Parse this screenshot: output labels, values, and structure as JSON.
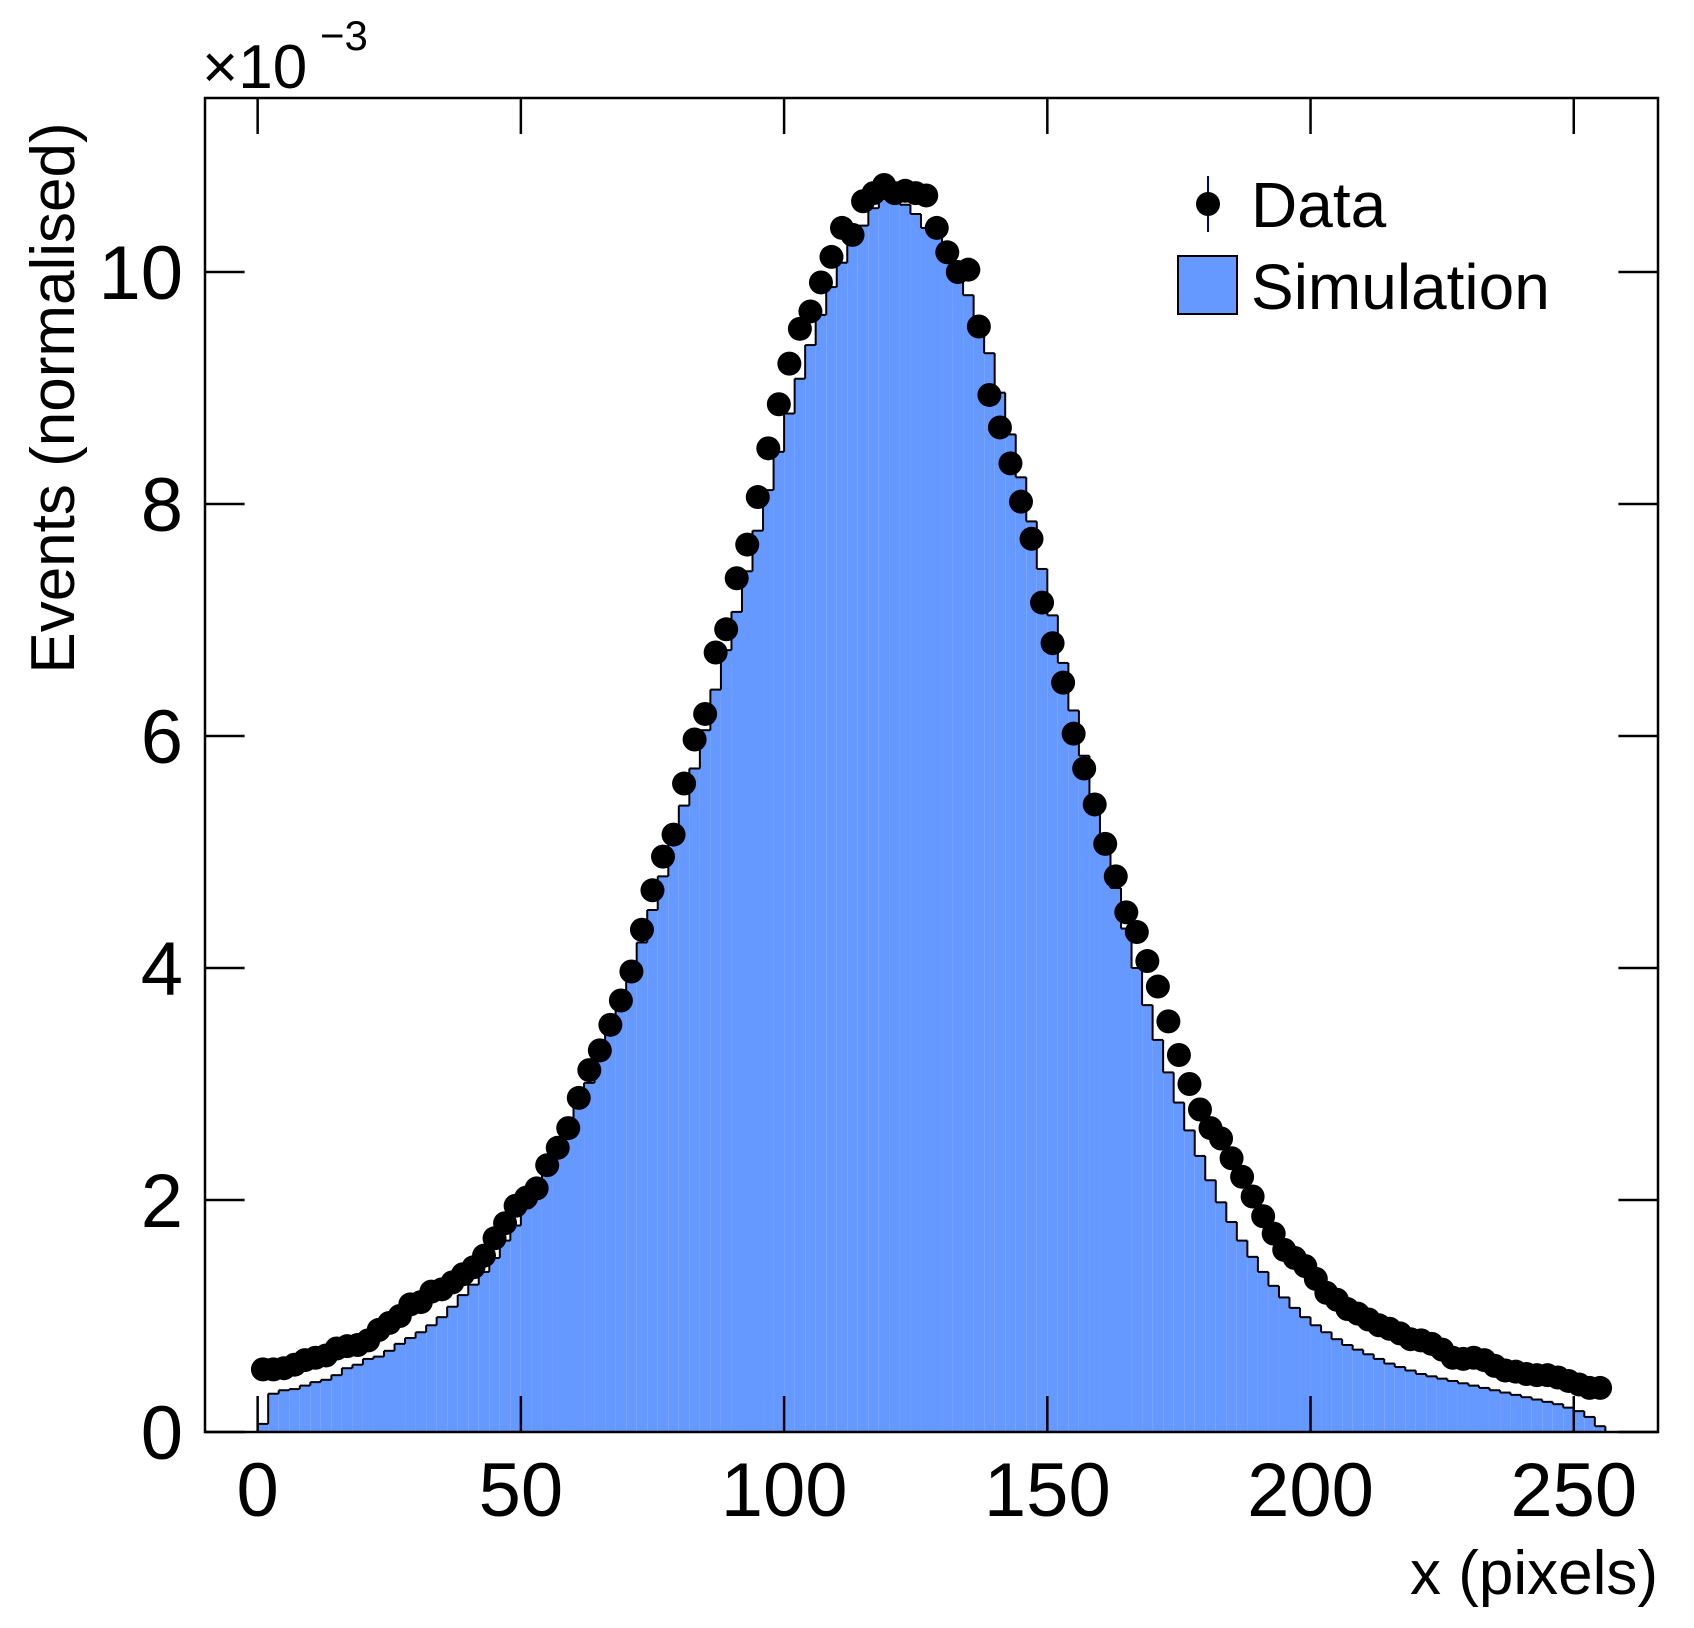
{
  "chart_data": {
    "type": "histogram",
    "x_label": "x (pixels)",
    "y_label": "Events (normalised)",
    "y_scale_label": "×10",
    "y_scale_exponent": "−3",
    "xlim": [
      -10,
      266
    ],
    "ylim": [
      0,
      11.5
    ],
    "xticks": [
      0,
      50,
      100,
      150,
      200,
      250
    ],
    "yticks": [
      0,
      2,
      4,
      6,
      8,
      10
    ],
    "legend": "upper right",
    "bins": [
      0,
      2,
      4,
      6,
      8,
      10,
      12,
      14,
      16,
      18,
      20,
      22,
      24,
      26,
      28,
      30,
      32,
      34,
      36,
      38,
      40,
      42,
      44,
      46,
      48,
      50,
      52,
      54,
      56,
      58,
      60,
      62,
      64,
      66,
      68,
      70,
      72,
      74,
      76,
      78,
      80,
      82,
      84,
      86,
      88,
      90,
      92,
      94,
      96,
      98,
      100,
      102,
      104,
      106,
      108,
      110,
      112,
      114,
      116,
      118,
      120,
      122,
      124,
      126,
      128,
      130,
      132,
      134,
      136,
      138,
      140,
      142,
      144,
      146,
      148,
      150,
      152,
      154,
      156,
      158,
      160,
      162,
      164,
      166,
      168,
      170,
      172,
      174,
      176,
      178,
      180,
      182,
      184,
      186,
      188,
      190,
      192,
      194,
      196,
      198,
      200,
      202,
      204,
      206,
      208,
      210,
      212,
      214,
      216,
      218,
      220,
      222,
      224,
      226,
      228,
      230,
      232,
      234,
      236,
      238,
      240,
      242,
      244,
      246,
      248,
      250,
      252,
      254,
      256
    ],
    "series": [
      {
        "name": "Data",
        "type": "scatter",
        "color": "#000000",
        "x": [
          1,
          3,
          5,
          7,
          9,
          11,
          13,
          15,
          17,
          19,
          21,
          23,
          25,
          27,
          29,
          31,
          33,
          35,
          37,
          39,
          41,
          43,
          45,
          47,
          49,
          51,
          53,
          55,
          57,
          59,
          61,
          63,
          65,
          67,
          69,
          71,
          73,
          75,
          77,
          79,
          81,
          83,
          85,
          87,
          89,
          91,
          93,
          95,
          97,
          99,
          101,
          103,
          105,
          107,
          109,
          111,
          113,
          115,
          117,
          119,
          121,
          123,
          125,
          127,
          129,
          131,
          133,
          135,
          137,
          139,
          141,
          143,
          145,
          147,
          149,
          151,
          153,
          155,
          157,
          159,
          161,
          163,
          165,
          167,
          169,
          171,
          173,
          175,
          177,
          179,
          181,
          183,
          185,
          187,
          189,
          191,
          193,
          195,
          197,
          199,
          201,
          203,
          205,
          207,
          209,
          211,
          213,
          215,
          217,
          219,
          221,
          223,
          225,
          227,
          229,
          231,
          233,
          235,
          237,
          239,
          241,
          243,
          245,
          247,
          249,
          251,
          253,
          255
        ],
        "values": [
          0.54,
          0.54,
          0.55,
          0.58,
          0.62,
          0.64,
          0.66,
          0.72,
          0.74,
          0.75,
          0.79,
          0.88,
          0.94,
          1.0,
          1.1,
          1.12,
          1.21,
          1.23,
          1.29,
          1.36,
          1.42,
          1.52,
          1.67,
          1.8,
          1.95,
          2.02,
          2.1,
          2.3,
          2.45,
          2.62,
          2.88,
          3.12,
          3.29,
          3.51,
          3.72,
          3.97,
          4.33,
          4.67,
          4.96,
          5.15,
          5.59,
          5.97,
          6.19,
          6.72,
          6.92,
          7.36,
          7.65,
          8.06,
          8.48,
          8.86,
          9.21,
          9.51,
          9.66,
          9.91,
          10.13,
          10.38,
          10.32,
          10.61,
          10.68,
          10.75,
          10.68,
          10.7,
          10.68,
          10.66,
          10.38,
          10.17,
          10.0,
          10.02,
          9.53,
          8.94,
          8.66,
          8.35,
          8.02,
          7.7,
          7.15,
          6.8,
          6.46,
          6.02,
          5.72,
          5.41,
          5.07,
          4.79,
          4.48,
          4.31,
          4.06,
          3.84,
          3.54,
          3.25,
          3.0,
          2.78,
          2.62,
          2.53,
          2.36,
          2.2,
          2.03,
          1.86,
          1.71,
          1.57,
          1.5,
          1.43,
          1.32,
          1.2,
          1.14,
          1.06,
          1.02,
          0.97,
          0.92,
          0.89,
          0.85,
          0.8,
          0.79,
          0.76,
          0.71,
          0.64,
          0.63,
          0.64,
          0.62,
          0.57,
          0.53,
          0.52,
          0.5,
          0.49,
          0.49,
          0.47,
          0.44,
          0.41,
          0.38,
          0.38
        ]
      },
      {
        "name": "Simulation",
        "type": "histogram",
        "color": "#6699ff",
        "values": [
          0.07,
          0.33,
          0.36,
          0.37,
          0.4,
          0.43,
          0.45,
          0.49,
          0.55,
          0.58,
          0.63,
          0.65,
          0.7,
          0.76,
          0.81,
          0.86,
          0.92,
          0.99,
          1.08,
          1.18,
          1.27,
          1.38,
          1.5,
          1.65,
          1.78,
          1.93,
          2.08,
          2.24,
          2.42,
          2.6,
          2.8,
          3.01,
          3.23,
          3.46,
          3.7,
          3.95,
          4.22,
          4.5,
          4.79,
          5.09,
          5.4,
          5.72,
          6.05,
          6.4,
          6.74,
          7.07,
          7.42,
          7.77,
          8.12,
          8.45,
          8.78,
          9.08,
          9.37,
          9.63,
          9.87,
          10.08,
          10.27,
          10.4,
          10.55,
          10.63,
          10.62,
          10.58,
          10.5,
          10.38,
          10.35,
          10.18,
          10.05,
          9.8,
          9.58,
          9.3,
          8.96,
          8.6,
          8.23,
          7.85,
          7.44,
          7.04,
          6.63,
          6.22,
          5.83,
          5.44,
          5.06,
          4.69,
          4.34,
          4.0,
          3.68,
          3.38,
          3.1,
          2.84,
          2.6,
          2.38,
          2.17,
          1.98,
          1.81,
          1.65,
          1.51,
          1.38,
          1.26,
          1.16,
          1.07,
          0.99,
          0.92,
          0.86,
          0.8,
          0.75,
          0.71,
          0.67,
          0.63,
          0.59,
          0.56,
          0.53,
          0.5,
          0.48,
          0.46,
          0.44,
          0.42,
          0.4,
          0.38,
          0.36,
          0.34,
          0.32,
          0.3,
          0.28,
          0.26,
          0.24,
          0.21,
          0.18,
          0.13,
          0.05
        ]
      }
    ]
  }
}
